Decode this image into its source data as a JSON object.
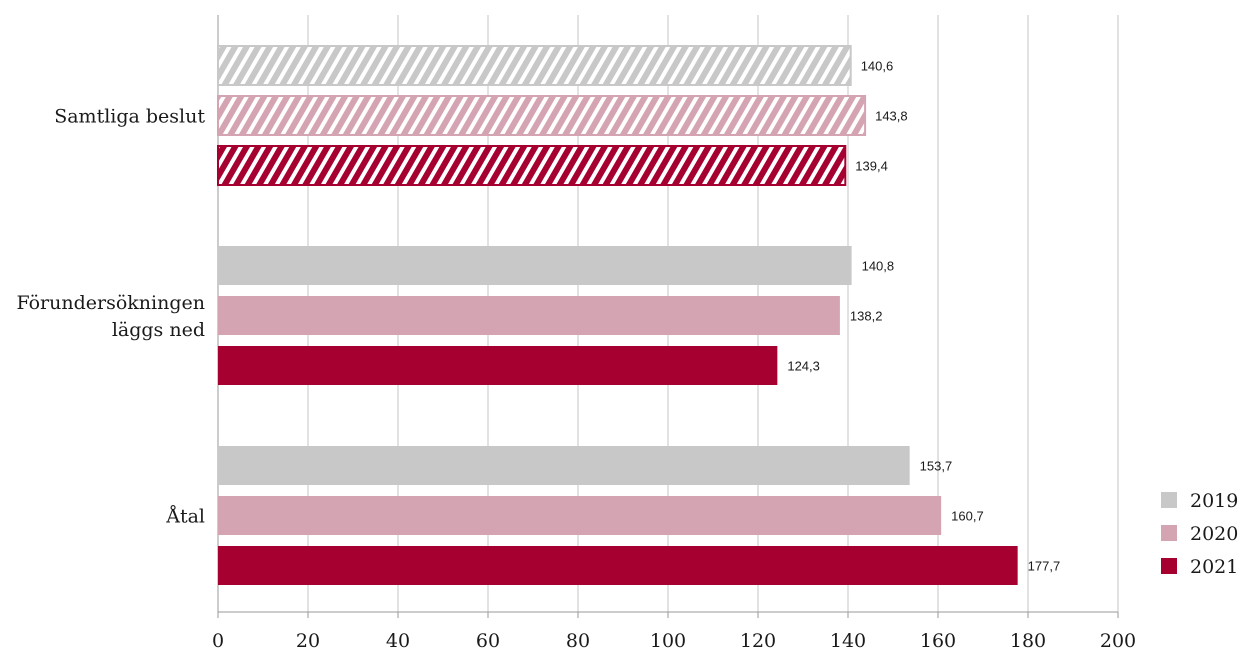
{
  "chart_data": {
    "type": "bar",
    "orientation": "horizontal",
    "categories": [
      "Samtliga beslut",
      "Förundersökningen läggs ned",
      "Åtal"
    ],
    "category_lines": [
      [
        "Samtliga beslut"
      ],
      [
        "Förundersökningen",
        "läggs ned"
      ],
      [
        "Åtal"
      ]
    ],
    "series": [
      {
        "name": "2019",
        "color": "#c8c8c8",
        "values": [
          140.6,
          140.8,
          153.7
        ],
        "value_labels": [
          "140,6",
          "140,8",
          "153,7"
        ]
      },
      {
        "name": "2020",
        "color": "#d5a4b2",
        "values": [
          143.8,
          138.2,
          160.7
        ],
        "value_labels": [
          "143,8",
          "138,2",
          "160,7"
        ]
      },
      {
        "name": "2021",
        "color": "#a50030",
        "values": [
          139.4,
          124.3,
          177.7
        ],
        "value_labels": [
          "139,4",
          "124,3",
          "177,7"
        ]
      }
    ],
    "hatched_categories": [
      "Samtliga beslut"
    ],
    "xlim": [
      0,
      200
    ],
    "xticks": [
      "0",
      "20",
      "40",
      "60",
      "80",
      "100",
      "120",
      "140",
      "160",
      "180",
      "200"
    ],
    "grid": true,
    "legend_position": "right"
  }
}
